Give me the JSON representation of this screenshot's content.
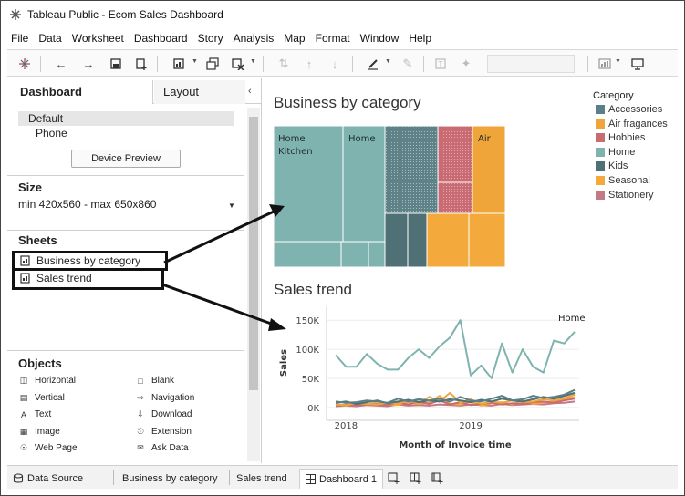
{
  "window": {
    "title": "Tableau Public - Ecom Sales Dashboard"
  },
  "menubar": [
    "File",
    "Data",
    "Worksheet",
    "Dashboard",
    "Story",
    "Analysis",
    "Map",
    "Format",
    "Window",
    "Help"
  ],
  "left_pane": {
    "tab_dashboard": "Dashboard",
    "tab_layout": "Layout",
    "devices": {
      "default": "Default",
      "phone": "Phone",
      "preview_button": "Device Preview"
    },
    "size": {
      "header": "Size",
      "value": "min 420x560 - max 650x860"
    },
    "sheets": {
      "header": "Sheets",
      "items": [
        "Business by category",
        "Sales trend"
      ]
    },
    "objects": {
      "header": "Objects",
      "items": [
        "Horizontal",
        "Blank",
        "Vertical",
        "Navigation",
        "Text",
        "Download",
        "Image",
        "Extension",
        "Web Page",
        "Ask Data"
      ]
    }
  },
  "treemap": {
    "title": "Business by category",
    "labels": [
      "Home\nKitchen",
      "Home",
      "Air"
    ]
  },
  "legend": {
    "title": "Category",
    "items": [
      {
        "name": "Accessories",
        "color": "#5b7f86"
      },
      {
        "name": "Air fragances",
        "color": "#f0a53a"
      },
      {
        "name": "Hobbies",
        "color": "#c86b73"
      },
      {
        "name": "Home",
        "color": "#7fb3b0"
      },
      {
        "name": "Kids",
        "color": "#4f7075"
      },
      {
        "name": "Seasonal",
        "color": "#f3a93b"
      },
      {
        "name": "Stationery",
        "color": "#c47a86"
      }
    ]
  },
  "chart_data": {
    "type": "line",
    "title": "Sales trend",
    "xlabel": "Month of Invoice time",
    "ylabel": "Sales",
    "ylim": [
      -5000,
      155000
    ],
    "y_ticks": [
      "150K",
      "100K",
      "50K",
      "0K"
    ],
    "y_tick_values": [
      150000,
      100000,
      50000,
      0
    ],
    "x_ticks": [
      "2018",
      "2019"
    ],
    "x_tick_positions": [
      1,
      13
    ],
    "annotation": "Home",
    "n_points": 24,
    "series": [
      {
        "name": "Home",
        "color": "#7fb3b0",
        "values": [
          90000,
          70000,
          70000,
          92000,
          75000,
          65000,
          65000,
          85000,
          100000,
          85000,
          105000,
          120000,
          150000,
          55000,
          72000,
          50000,
          110000,
          60000,
          100000,
          70000,
          60000,
          115000,
          110000,
          130000
        ]
      },
      {
        "name": "Accessories",
        "color": "#5b7f86",
        "values": [
          10000,
          8000,
          9000,
          12000,
          10000,
          8000,
          15000,
          10000,
          14000,
          12000,
          15000,
          10000,
          18000,
          12000,
          10000,
          15000,
          20000,
          12000,
          14000,
          20000,
          16000,
          18000,
          22000,
          30000
        ]
      },
      {
        "name": "Kids",
        "color": "#4f7075",
        "values": [
          8000,
          10000,
          6000,
          9000,
          12000,
          7000,
          10000,
          13000,
          9000,
          12000,
          10000,
          14000,
          12000,
          9000,
          13000,
          10000,
          15000,
          12000,
          10000,
          14000,
          18000,
          15000,
          20000,
          25000
        ]
      },
      {
        "name": "Air fragances",
        "color": "#f0a53a",
        "values": [
          5000,
          4000,
          7000,
          6000,
          5000,
          8000,
          6000,
          12000,
          7000,
          18000,
          10000,
          25000,
          8000,
          14000,
          6000,
          10000,
          8000,
          12000,
          9000,
          10000,
          14000,
          12000,
          16000,
          22000
        ]
      },
      {
        "name": "Hobbies",
        "color": "#c86b73",
        "values": [
          3000,
          5000,
          4000,
          5000,
          6000,
          4000,
          8000,
          5000,
          10000,
          6000,
          12000,
          5000,
          9000,
          4000,
          6000,
          8000,
          5000,
          7000,
          6000,
          9000,
          10000,
          8000,
          12000,
          15000
        ]
      },
      {
        "name": "Seasonal",
        "color": "#f3a93b",
        "values": [
          6000,
          3000,
          8000,
          4000,
          10000,
          5000,
          4000,
          9000,
          6000,
          8000,
          20000,
          6000,
          5000,
          10000,
          3000,
          7000,
          9000,
          5000,
          12000,
          6000,
          8000,
          10000,
          14000,
          18000
        ]
      },
      {
        "name": "Stationery",
        "color": "#c47a86",
        "values": [
          2000,
          3000,
          2000,
          4000,
          3000,
          2000,
          5000,
          3000,
          4000,
          3000,
          5000,
          4000,
          3000,
          5000,
          4000,
          3000,
          6000,
          4000,
          5000,
          6000,
          5000,
          7000,
          8000,
          10000
        ]
      }
    ]
  },
  "bottom_tabs": {
    "data_source": "Data Source",
    "sheet1": "Business by category",
    "sheet2": "Sales trend",
    "dashboard": "Dashboard 1"
  }
}
